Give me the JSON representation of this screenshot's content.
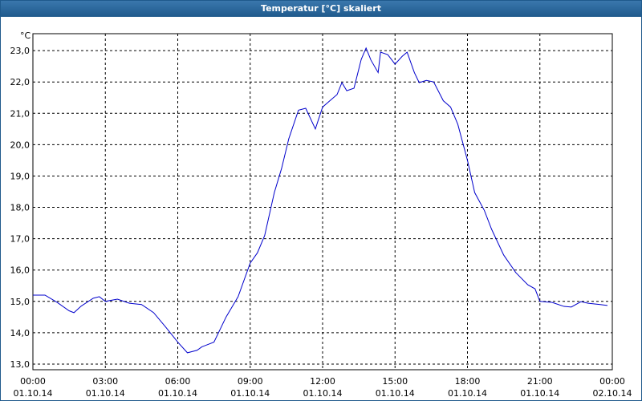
{
  "chart_data": {
    "type": "line",
    "title": "Temperatur [°C] skaliert",
    "y_unit": "°C",
    "x": [
      0,
      0.5,
      1.0,
      1.5,
      1.7,
      2.0,
      2.5,
      2.75,
      3.0,
      3.5,
      4.0,
      4.5,
      5.0,
      5.5,
      6.0,
      6.4,
      6.8,
      7.0,
      7.5,
      8.0,
      8.5,
      9.0,
      9.3,
      9.6,
      10.0,
      10.3,
      10.6,
      11.0,
      11.3,
      11.7,
      12.0,
      12.3,
      12.6,
      12.8,
      13.0,
      13.3,
      13.6,
      13.8,
      14.0,
      14.3,
      14.4,
      14.7,
      15.0,
      15.3,
      15.5,
      15.8,
      16.0,
      16.3,
      16.6,
      17.0,
      17.3,
      17.6,
      18.0,
      18.3,
      18.7,
      19.0,
      19.5,
      20.0,
      20.5,
      20.8,
      21.0,
      21.5,
      22.0,
      22.3,
      22.7,
      23.0,
      23.5,
      23.8
    ],
    "series": [
      {
        "color": "#0000cc",
        "values": [
          15.2,
          15.2,
          14.97,
          14.7,
          14.64,
          14.85,
          15.1,
          15.15,
          15.0,
          15.07,
          14.94,
          14.9,
          14.64,
          14.18,
          13.7,
          13.36,
          13.44,
          13.55,
          13.7,
          14.5,
          15.15,
          16.22,
          16.55,
          17.1,
          18.47,
          19.24,
          20.19,
          21.1,
          21.16,
          20.5,
          21.2,
          21.4,
          21.6,
          21.98,
          21.72,
          21.8,
          22.72,
          23.08,
          22.7,
          22.3,
          22.95,
          22.87,
          22.57,
          22.82,
          22.95,
          22.3,
          21.98,
          22.05,
          22.0,
          21.4,
          21.2,
          20.65,
          19.5,
          18.47,
          17.9,
          17.3,
          16.48,
          15.92,
          15.53,
          15.4,
          15.0,
          14.97,
          14.84,
          14.82,
          14.99,
          14.94,
          14.9,
          14.87
        ]
      }
    ],
    "xlim": [
      0,
      24
    ],
    "xticks": [
      {
        "value": 0,
        "label": "00:00",
        "date": "01.10.14"
      },
      {
        "value": 3,
        "label": "03:00",
        "date": "01.10.14"
      },
      {
        "value": 6,
        "label": "06:00",
        "date": "01.10.14"
      },
      {
        "value": 9,
        "label": "09:00",
        "date": "01.10.14"
      },
      {
        "value": 12,
        "label": "12:00",
        "date": "01.10.14"
      },
      {
        "value": 15,
        "label": "15:00",
        "date": "01.10.14"
      },
      {
        "value": 18,
        "label": "18:00",
        "date": "01.10.14"
      },
      {
        "value": 21,
        "label": "21:00",
        "date": "01.10.14"
      },
      {
        "value": 24,
        "label": "00:00",
        "date": "02.10.14"
      }
    ],
    "ylim": [
      12.82,
      23.54
    ],
    "yticks": [
      {
        "value": 13,
        "label": "13,0"
      },
      {
        "value": 14,
        "label": "14,0"
      },
      {
        "value": 15,
        "label": "15,0"
      },
      {
        "value": 16,
        "label": "16,0"
      },
      {
        "value": 17,
        "label": "17,0"
      },
      {
        "value": 18,
        "label": "18,0"
      },
      {
        "value": 19,
        "label": "19,0"
      },
      {
        "value": 20,
        "label": "20,0"
      },
      {
        "value": 21,
        "label": "21,0"
      },
      {
        "value": 22,
        "label": "22,0"
      },
      {
        "value": 23,
        "label": "23,0"
      }
    ],
    "grid": true
  }
}
